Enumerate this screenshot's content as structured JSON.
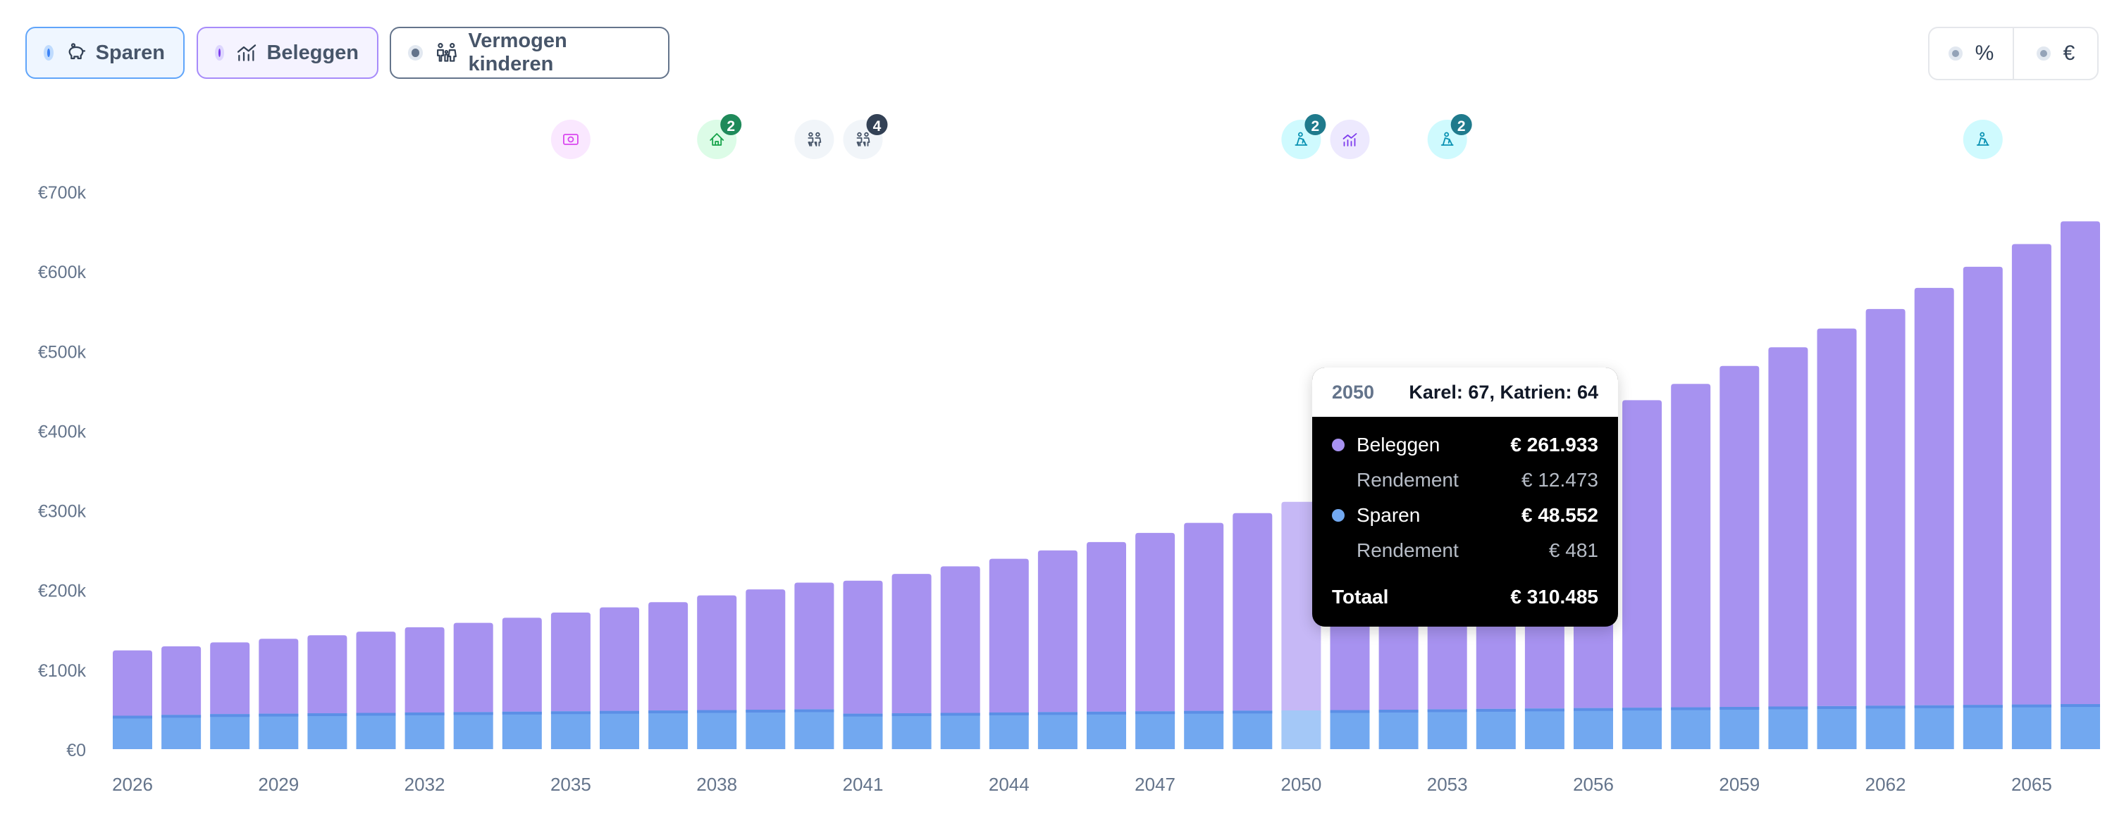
{
  "toggles": [
    {
      "label": "Sparen",
      "icon": "piggy-bank-icon"
    },
    {
      "label": "Beleggen",
      "icon": "chart-up-icon"
    },
    {
      "label": "Vermogen kinderen",
      "icon": "family-icon"
    }
  ],
  "units": [
    {
      "label": "%"
    },
    {
      "label": "€"
    }
  ],
  "colors": {
    "beleggen": "#a792f0",
    "sparen": "#72a8f0",
    "sparen_top": "#5b8fe6",
    "highlight_beleggen": "#c6b8f6",
    "highlight_sparen": "#a4c8f7",
    "kinderen": "#64748b"
  },
  "events": [
    {
      "year": 2035,
      "icon": "money-icon",
      "color": "#d946ef",
      "bg": "#fae8ff",
      "badge": ""
    },
    {
      "year": 2038,
      "icon": "house-icon",
      "color": "#16a34a",
      "bg": "#dcfce7",
      "badge": "2",
      "badge_color": "#1f8a5a"
    },
    {
      "year": 2040,
      "icon": "people-icon",
      "color": "#475569",
      "bg": "#f1f5f9",
      "badge": ""
    },
    {
      "year": 2041,
      "icon": "people-icon",
      "color": "#475569",
      "bg": "#f1f5f9",
      "badge": "4",
      "badge_color": "#334155"
    },
    {
      "year": 2050,
      "icon": "retire-icon",
      "color": "#0891b2",
      "bg": "#cffafe",
      "badge": "2",
      "badge_color": "#1f7a8c"
    },
    {
      "year": 2051,
      "icon": "chart-up-icon",
      "color": "#7c3aed",
      "bg": "#ede9fe",
      "badge": ""
    },
    {
      "year": 2053,
      "icon": "retire-icon",
      "color": "#0891b2",
      "bg": "#cffafe",
      "badge": "2",
      "badge_color": "#1f7a8c"
    },
    {
      "year": 2064,
      "icon": "retire-icon",
      "color": "#0891b2",
      "bg": "#cffafe",
      "badge": ""
    }
  ],
  "tooltip": {
    "year": "2050",
    "ages": "Karel: 67, Katrien: 64",
    "beleggen_label": "Beleggen",
    "beleggen_value": "€ 261.933",
    "beleggen_rendement_label": "Rendement",
    "beleggen_rendement_value": "€ 12.473",
    "sparen_label": "Sparen",
    "sparen_value": "€ 48.552",
    "sparen_rendement_label": "Rendement",
    "sparen_rendement_value": "€ 481",
    "totaal_label": "Totaal",
    "totaal_value": "€ 310.485"
  },
  "chart_data": {
    "type": "bar",
    "stacked": true,
    "categories": [
      2026,
      2027,
      2028,
      2029,
      2030,
      2031,
      2032,
      2033,
      2034,
      2035,
      2036,
      2037,
      2038,
      2039,
      2040,
      2041,
      2042,
      2043,
      2044,
      2045,
      2046,
      2047,
      2048,
      2049,
      2050,
      2051,
      2052,
      2053,
      2054,
      2055,
      2056,
      2057,
      2058,
      2059,
      2060,
      2061,
      2062,
      2063,
      2064,
      2065,
      2066
    ],
    "series": [
      {
        "name": "Sparen",
        "values": [
          42000,
          43000,
          44000,
          44500,
          45000,
          45500,
          46000,
          46500,
          47000,
          47500,
          48000,
          48500,
          49000,
          49500,
          50000,
          44500,
          45000,
          45500,
          46000,
          46500,
          47000,
          47500,
          48000,
          48300,
          48552,
          49000,
          49500,
          50000,
          50500,
          51000,
          51500,
          52000,
          52500,
          53000,
          53500,
          54000,
          54500,
          55000,
          55500,
          56000,
          56500
        ]
      },
      {
        "name": "Beleggen",
        "values": [
          82000,
          86000,
          90000,
          94000,
          98000,
          102000,
          107000,
          112000,
          118000,
          124000,
          130000,
          136000,
          144000,
          151000,
          159000,
          167000,
          175000,
          184000,
          193000,
          203000,
          213000,
          224000,
          236000,
          248000,
          261933,
          275000,
          290000,
          305000,
          321000,
          338000,
          367000,
          386000,
          406000,
          428000,
          451000,
          474000,
          498000,
          524000,
          550000,
          578000,
          606000
        ]
      }
    ],
    "x_tick_labels": [
      "2026",
      "2029",
      "2032",
      "2035",
      "2038",
      "2041",
      "2044",
      "2047",
      "2050",
      "2053",
      "2056",
      "2059",
      "2062",
      "2065"
    ],
    "y_tick_labels": [
      "€0",
      "€100k",
      "€200k",
      "€300k",
      "€400k",
      "€500k",
      "€600k",
      "€700k"
    ],
    "ylim": [
      0,
      700000
    ],
    "highlight": 2050,
    "grid": false,
    "legend": "top-left"
  }
}
